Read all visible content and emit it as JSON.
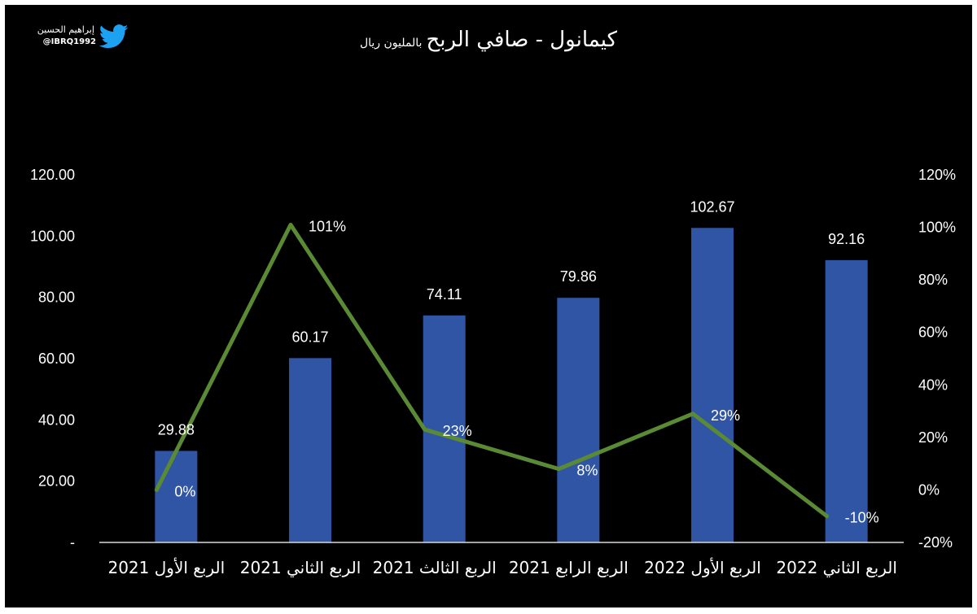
{
  "brand": {
    "name": "إبراهيم الحسين",
    "handle": "@IBRQ1992",
    "icon": "twitter-bird-icon",
    "icon_color": "#1da1f2"
  },
  "title": {
    "main": "كيمانول - صافي الربح",
    "sub": "بالمليون ريال"
  },
  "colors": {
    "background": "#000000",
    "bars": "#2f55a4",
    "line": "#5a8a34",
    "text": "#ffffff"
  },
  "chart_data": {
    "type": "bar",
    "categories": [
      "الربع الأول 2021",
      "الربع الثاني 2021",
      "الربع الثالث 2021",
      "الربع الرابع 2021",
      "الربع الأول 2022",
      "الربع الثاني 2022"
    ],
    "series": [
      {
        "type": "bar",
        "axis": "left",
        "values": [
          29.88,
          60.17,
          74.11,
          79.86,
          102.67,
          92.16
        ],
        "labels": [
          "29.88",
          "60.17",
          "74.11",
          "79.86",
          "102.67",
          "92.16"
        ]
      },
      {
        "type": "line",
        "axis": "right",
        "values": [
          0,
          101,
          23,
          8,
          29,
          -10
        ],
        "labels": [
          "0%",
          "101%",
          "23%",
          "8%",
          "29%",
          "-10%"
        ]
      }
    ],
    "y_left": {
      "min": 0,
      "max": 120,
      "step": 20,
      "tick_labels": [
        "-",
        "20.00",
        "40.00",
        "60.00",
        "80.00",
        "100.00",
        "120.00"
      ]
    },
    "y_right": {
      "min": -20,
      "max": 120,
      "step": 20,
      "tick_labels": [
        "-20%",
        "0%",
        "20%",
        "40%",
        "60%",
        "80%",
        "100%",
        "120%"
      ]
    },
    "grid": false,
    "legend": "none"
  }
}
